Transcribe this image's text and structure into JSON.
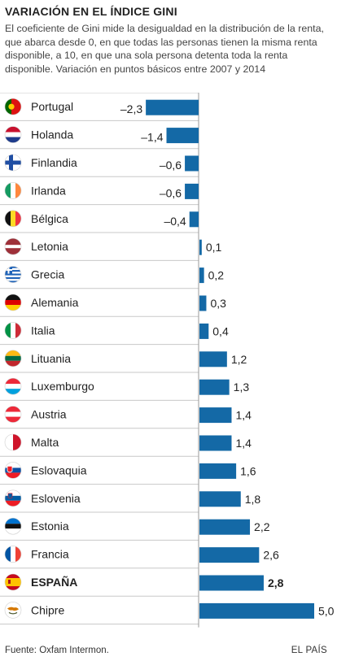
{
  "title": "VARIACIÓN EN EL ÍNDICE GINI",
  "subtitle": "El coeficiente de Gini mide la desigualdad en la distribución de la renta, que abarca desde 0, en que todas las personas tienen la misma renta disponible, a 10, en que una sola persona detenta toda la renta disponible. Variación en puntos básicos entre 2007 y 2014",
  "footer": {
    "source": "Fuente: Oxfam Intermon.",
    "brand": "EL PAÍS"
  },
  "colors": {
    "bar": "#1469a6",
    "text": "#222222",
    "grid": "#c8c8c8"
  },
  "chart_data": {
    "type": "bar",
    "orientation": "horizontal",
    "categories": [
      "Portugal",
      "Holanda",
      "Finlandia",
      "Irlanda",
      "Bélgica",
      "Letonia",
      "Grecia",
      "Alemania",
      "Italia",
      "Lituania",
      "Luxemburgo",
      "Austria",
      "Malta",
      "Eslovaquia",
      "Eslovenia",
      "Estonia",
      "Francia",
      "ESPAÑA",
      "Chipre"
    ],
    "values": [
      -2.3,
      -1.4,
      -0.6,
      -0.6,
      -0.4,
      0.1,
      0.2,
      0.3,
      0.4,
      1.2,
      1.3,
      1.4,
      1.4,
      1.6,
      1.8,
      2.2,
      2.6,
      2.8,
      5.0
    ],
    "labels": [
      "–2,3",
      "–1,4",
      "–0,6",
      "–0,6",
      "–0,4",
      "0,1",
      "0,2",
      "0,3",
      "0,4",
      "1,2",
      "1,3",
      "1,4",
      "1,4",
      "1,6",
      "1,8",
      "2,2",
      "2,6",
      "2,8",
      "5,0"
    ],
    "highlight": "ESPAÑA",
    "flags": [
      "portugal-flag-icon",
      "netherlands-flag-icon",
      "finland-flag-icon",
      "ireland-flag-icon",
      "belgium-flag-icon",
      "latvia-flag-icon",
      "greece-flag-icon",
      "germany-flag-icon",
      "italy-flag-icon",
      "lithuania-flag-icon",
      "luxembourg-flag-icon",
      "austria-flag-icon",
      "malta-flag-icon",
      "slovakia-flag-icon",
      "slovenia-flag-icon",
      "estonia-flag-icon",
      "france-flag-icon",
      "spain-flag-icon",
      "cyprus-flag-icon"
    ]
  }
}
